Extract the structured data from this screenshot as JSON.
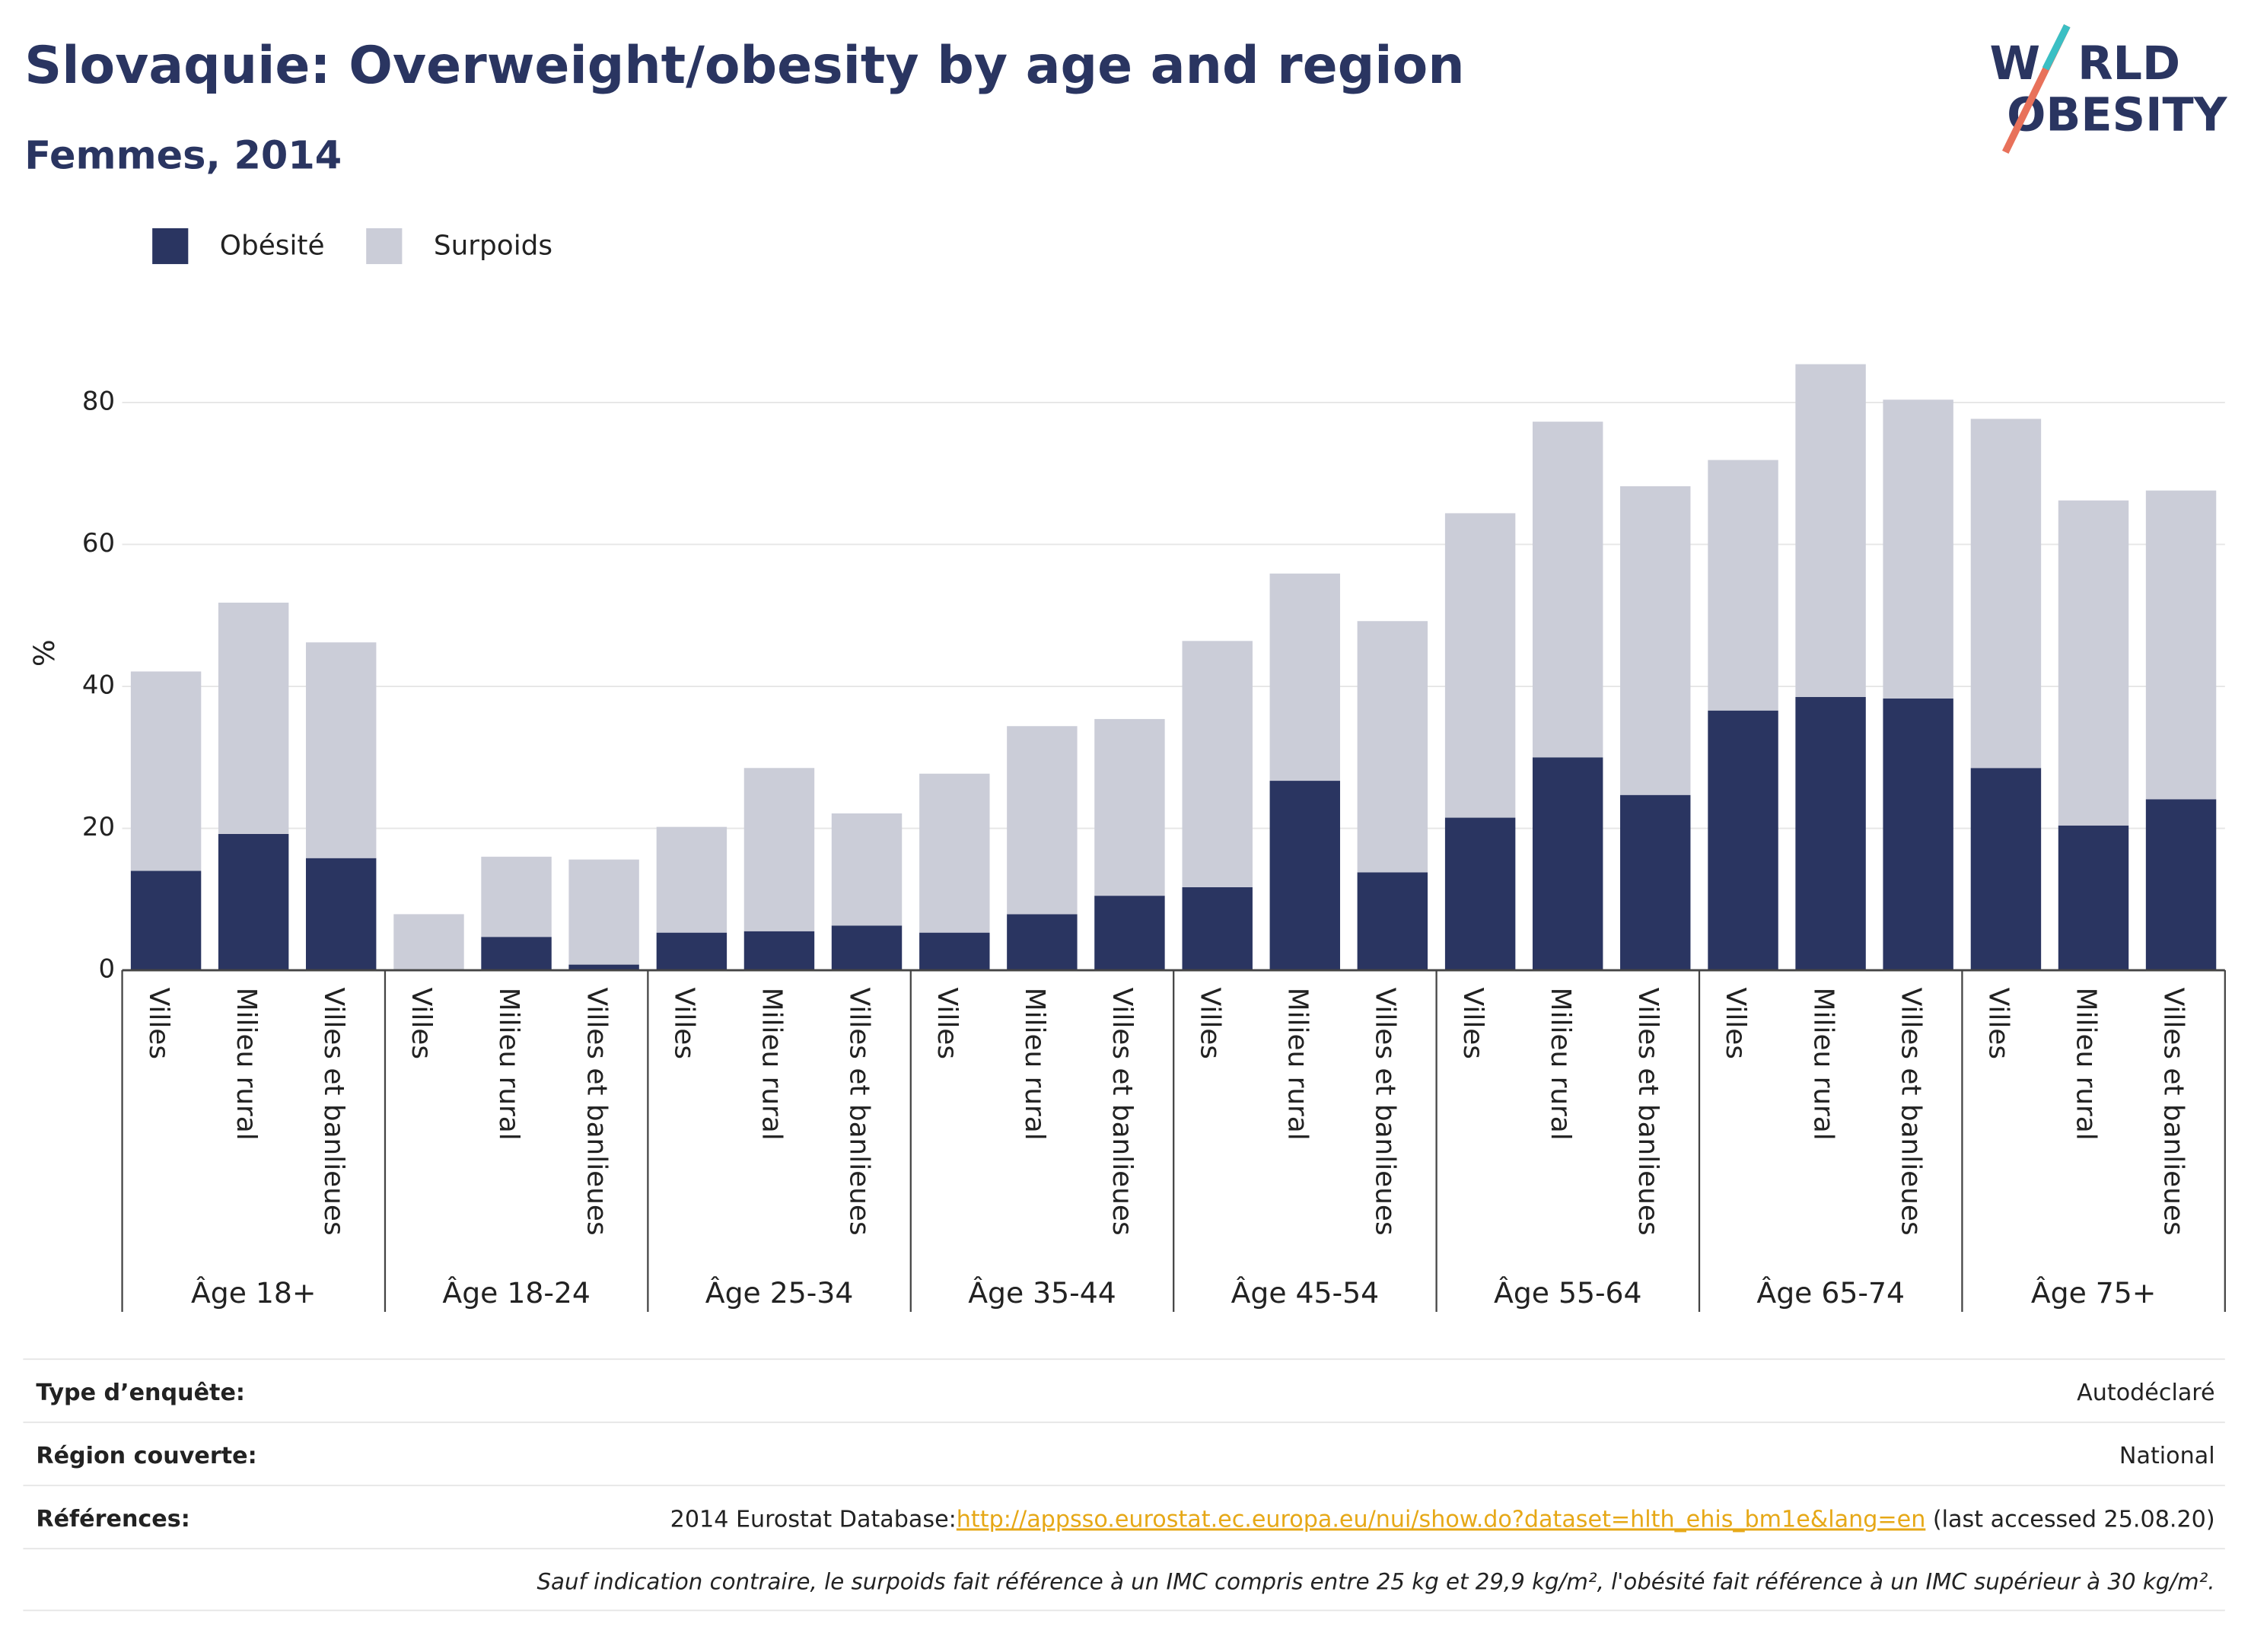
{
  "chart_data": {
    "type": "stacked_bar",
    "title": "Slovaquie: Overweight/obesity by age and region",
    "subtitle": "Femmes, 2014",
    "y_label": "%",
    "groups": [
      {
        "name": "Âge 18+",
        "categories": [
          "Villes",
          "Milieu rural",
          "Villes et banlieues"
        ]
      },
      {
        "name": "Âge 18-24",
        "categories": [
          "Villes",
          "Milieu rural",
          "Villes et banlieues"
        ]
      },
      {
        "name": "Âge 25-34",
        "categories": [
          "Villes",
          "Milieu rural",
          "Villes et banlieues"
        ]
      },
      {
        "name": "Âge 35-44",
        "categories": [
          "Villes",
          "Milieu rural",
          "Villes et banlieues"
        ]
      },
      {
        "name": "Âge 45-54",
        "categories": [
          "Villes",
          "Milieu rural",
          "Villes et banlieues"
        ]
      },
      {
        "name": "Âge 55-64",
        "categories": [
          "Villes",
          "Milieu rural",
          "Villes et banlieues"
        ]
      },
      {
        "name": "Âge 65-74",
        "categories": [
          "Villes",
          "Milieu rural",
          "Villes et banlieues"
        ]
      },
      {
        "name": "Âge 75+",
        "categories": [
          "Villes",
          "Milieu rural",
          "Villes et banlieues"
        ]
      }
    ],
    "series": [
      {
        "name": "Obésité",
        "color": "#2a3561",
        "values": [
          14.0,
          19.2,
          15.8,
          0,
          4.7,
          0.8,
          5.3,
          5.5,
          6.3,
          5.3,
          7.9,
          10.5,
          11.7,
          26.7,
          13.8,
          21.5,
          30.0,
          24.7,
          36.6,
          38.5,
          38.3,
          28.5,
          20.4,
          24.1
        ]
      },
      {
        "name": "Surpoids",
        "color": "#cbcdd8",
        "values": [
          28.1,
          32.6,
          30.4,
          7.9,
          11.3,
          14.8,
          14.9,
          23.0,
          15.8,
          22.4,
          26.5,
          24.9,
          34.7,
          29.2,
          35.4,
          42.9,
          47.3,
          43.5,
          35.3,
          46.9,
          42.1,
          49.2,
          45.8,
          43.5
        ]
      }
    ],
    "ylim": [
      0,
      90
    ],
    "yticks": [
      0,
      20,
      40,
      60,
      80
    ],
    "grid": true,
    "legend": "top-left"
  },
  "logo": [
    "W",
    "RLD",
    "OBESITY"
  ],
  "footer": {
    "rows": [
      {
        "label": "Type d’enquête:",
        "value": "Autodéclaré"
      },
      {
        "label": "Région couverte:",
        "value": "National"
      },
      {
        "label": "Références:",
        "value_before": "2014 Eurostat Database:",
        "link": "http://appsso.eurostat.ec.europa.eu/nui/show.do?dataset=hlth_ehis_bm1e&lang=en",
        "value_after": " (last accessed 25.08.20)"
      }
    ],
    "note": "Sauf indication contraire, le surpoids fait référence à un IMC compris entre 25 kg et 29,9 kg/m², l'obésité fait référence à un IMC supérieur à 30 kg/m²."
  }
}
